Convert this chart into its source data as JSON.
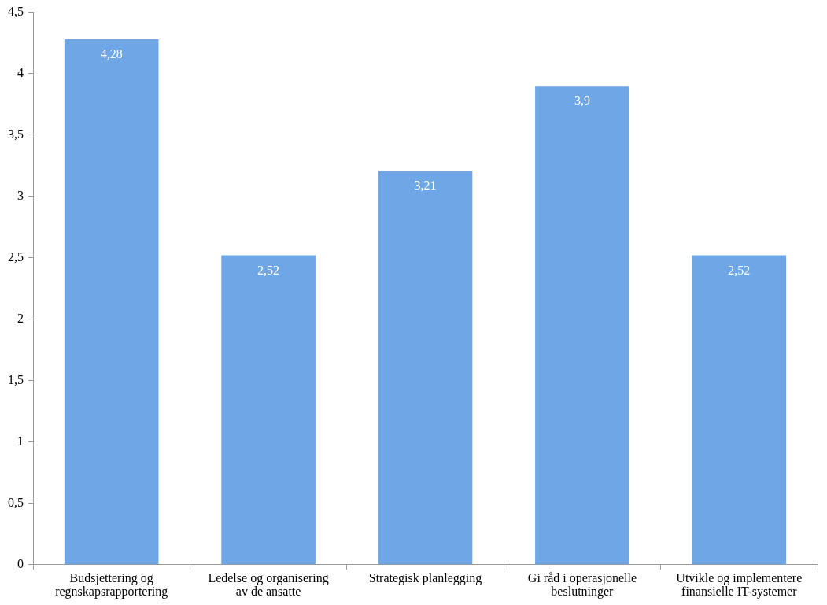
{
  "chart_data": {
    "type": "bar",
    "categories": [
      "Budsjettering og regnskapsrapportering",
      "Ledelse og organisering av de ansatte",
      "Strategisk planlegging",
      "Gi råd i operasjonelle beslutninger",
      "Utvikle og implementere finansielle IT-systemer"
    ],
    "values": [
      4.28,
      2.52,
      3.21,
      3.9,
      2.52
    ],
    "value_labels": [
      "4,28",
      "2,52",
      "3,21",
      "3,9",
      "2,52"
    ],
    "color": "#6fa6e6",
    "ylim": [
      0,
      4.5
    ],
    "yticks": [
      0,
      {
        "value": 0.5,
        "label": "0,5"
      },
      1,
      {
        "value": 1.5,
        "label": "1,5"
      },
      2,
      {
        "value": 2.5,
        "label": "2,5"
      },
      3,
      {
        "value": 3.5,
        "label": "3,5"
      },
      4,
      {
        "value": 4.5,
        "label": "4,5"
      }
    ],
    "grid": false,
    "legend": false
  }
}
